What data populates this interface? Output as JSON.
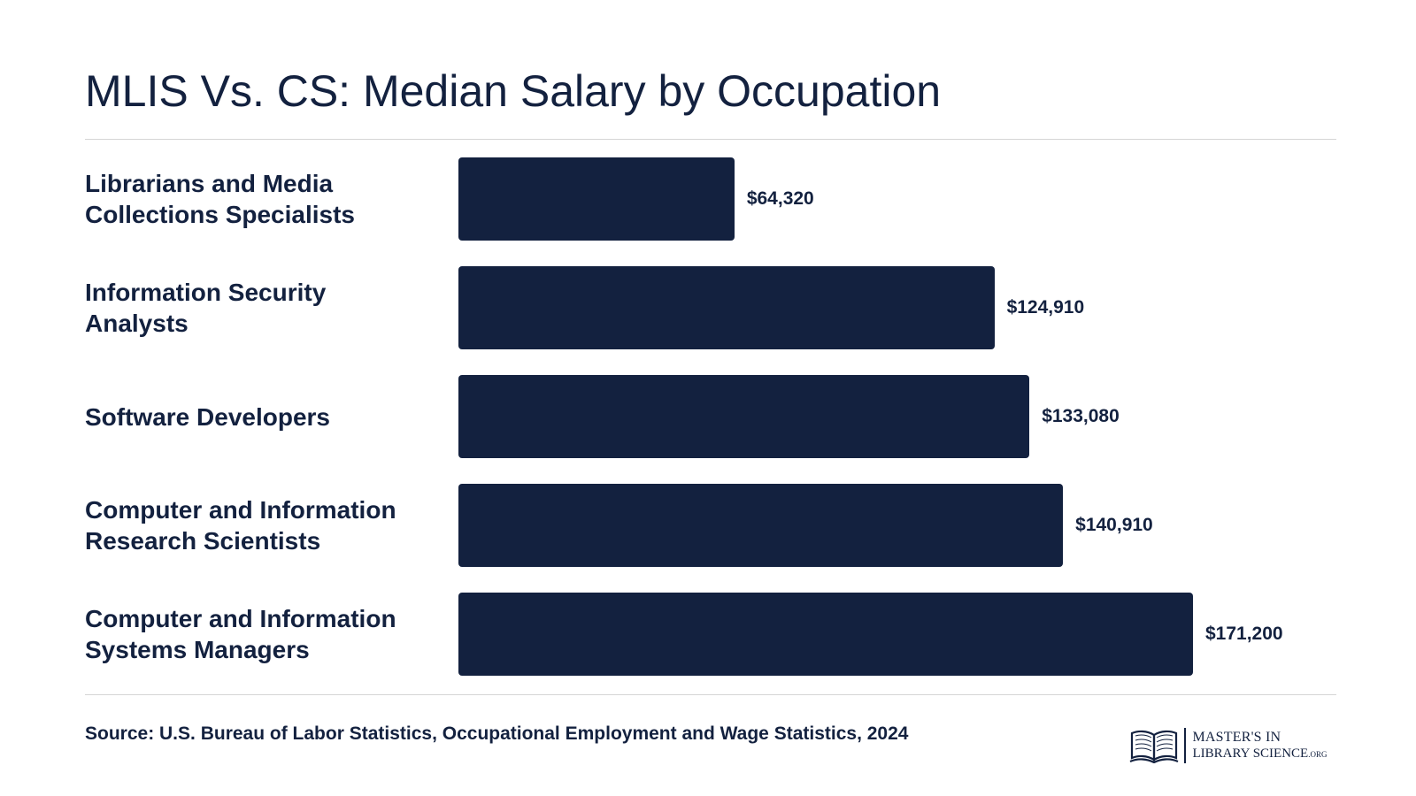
{
  "chart_data": {
    "type": "bar",
    "orientation": "horizontal",
    "title": "MLIS Vs. CS: Median Salary by Occupation",
    "categories": [
      [
        "Librarians and Media",
        "Collections Specialists"
      ],
      [
        "Information Security",
        "Analysts"
      ],
      [
        "Software Developers"
      ],
      [
        "Computer and Information",
        "Research Scientists"
      ],
      [
        "Computer and Information",
        "Systems Managers"
      ]
    ],
    "values": [
      64320,
      124910,
      133080,
      140910,
      171200
    ],
    "value_labels": [
      "$64,320",
      "$124,910",
      "$133,080",
      "$140,910",
      "$171,200"
    ],
    "xlabel": "",
    "ylabel": "",
    "grid": false,
    "bar_color": "#13213f"
  },
  "source": "Source: U.S. Bureau of Labor Statistics, Occupational Employment and Wage Statistics, 2024",
  "logo": {
    "line1": "MASTER'S IN",
    "line2": "LIBRARY SCIENCE",
    "line2_suffix": ".ORG",
    "icon": "open-book-icon"
  }
}
